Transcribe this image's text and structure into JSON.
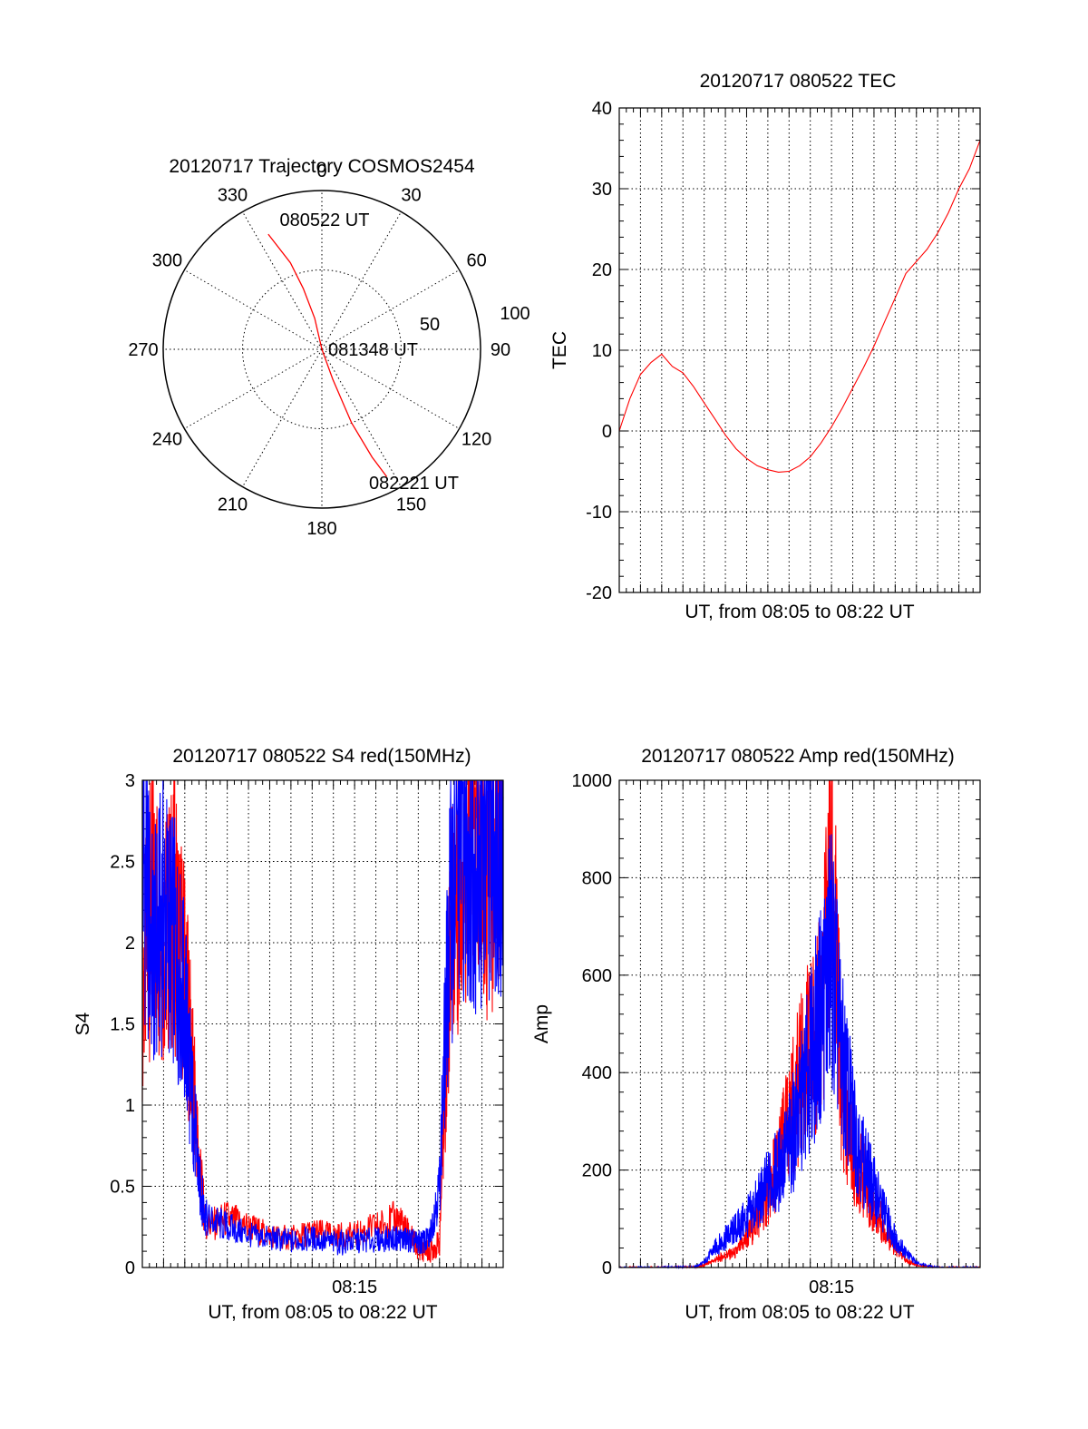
{
  "figure": {
    "panels": {
      "polar": {
        "title": "20120717 Trajectory COSMOS2454"
      },
      "tec": {
        "title": "20120717 080522 TEC"
      },
      "s4": {
        "title": "20120717 080522 S4 red(150MHz)"
      },
      "amp": {
        "title": "20120717 080522 Amp red(150MHz)"
      }
    }
  },
  "colors": {
    "red": "#ff0000",
    "blue": "#0000ff",
    "black": "#000000"
  },
  "chart_data": [
    {
      "type": "scatter",
      "subtype": "polar",
      "title": "20120717 Trajectory COSMOS2454",
      "azimuth_labels": [
        "0",
        "30",
        "60",
        "90",
        "120",
        "150",
        "180",
        "210",
        "240",
        "270",
        "300",
        "330"
      ],
      "radial_labels": [
        "50",
        "100"
      ],
      "radial_ticks": [
        50,
        100
      ],
      "series": [
        {
          "color": "#ff0000",
          "points": [
            {
              "az": 335,
              "r": 80
            },
            {
              "az": 340,
              "r": 58
            },
            {
              "az": 343,
              "r": 40
            },
            {
              "az": 347,
              "r": 20
            },
            {
              "az": 0,
              "r": 0
            },
            {
              "az": 160,
              "r": 20
            },
            {
              "az": 158,
              "r": 50
            },
            {
              "az": 155,
              "r": 75
            },
            {
              "az": 153,
              "r": 90
            }
          ]
        }
      ],
      "annotations": [
        {
          "text": "080522 UT",
          "az": 348,
          "r": 83
        },
        {
          "text": "081348 UT",
          "az": 80,
          "r": 33
        },
        {
          "text": "082221 UT",
          "az": 150,
          "r": 95
        }
      ]
    },
    {
      "type": "line",
      "title": "20120717 080522 TEC",
      "xlabel": "UT, from 08:05 to 08:22 UT",
      "ylabel": "TEC",
      "ylim": [
        -20,
        40
      ],
      "yticks": [
        "-20",
        "-10",
        "0",
        "10",
        "20",
        "30",
        "40"
      ],
      "xlim": [
        0,
        17
      ],
      "series": [
        {
          "color": "#ff0000",
          "x": [
            0,
            0.5,
            1,
            1.5,
            2,
            2.5,
            3,
            3.5,
            4,
            4.5,
            5,
            5.5,
            6,
            6.5,
            7,
            7.5,
            8,
            8.5,
            9,
            9.5,
            10,
            10.5,
            11,
            11.5,
            12,
            12.5,
            13,
            13.5,
            14,
            14.5,
            15,
            15.5,
            16,
            16.5,
            17
          ],
          "y": [
            0,
            4,
            7,
            8.5,
            9.5,
            8,
            7.2,
            5.5,
            3.5,
            1.5,
            -0.5,
            -2.2,
            -3.4,
            -4.3,
            -4.8,
            -5.1,
            -5,
            -4.3,
            -3.2,
            -1.5,
            0.5,
            2.8,
            5.3,
            7.8,
            10.5,
            13.5,
            16.5,
            19.5,
            21,
            22.5,
            24.5,
            27,
            30,
            32.5,
            36
          ]
        }
      ]
    },
    {
      "type": "line",
      "title": "20120717 080522 S4 red(150MHz)",
      "xlabel": "UT, from 08:05 to 08:22 UT",
      "ylabel": "S4",
      "ylim": [
        0,
        3
      ],
      "yticks": [
        "0",
        "0.5",
        "1",
        "1.5",
        "2",
        "2.5",
        "3"
      ],
      "xlim": [
        0,
        17
      ],
      "xticks": [
        {
          "value": 10,
          "label": "08:15"
        }
      ],
      "series": [
        {
          "color": "#ff0000",
          "x": [
            0,
            0.5,
            1,
            1.5,
            2,
            2.3,
            2.7,
            3,
            4,
            5,
            6,
            7,
            8,
            9,
            10,
            11,
            12,
            12.5,
            13,
            13.5,
            14,
            14.5,
            15,
            15.5,
            16,
            16.5,
            17
          ],
          "y": [
            1.7,
            2.3,
            2.0,
            2.2,
            1.8,
            1.3,
            0.6,
            0.25,
            0.3,
            0.25,
            0.2,
            0.18,
            0.22,
            0.2,
            0.2,
            0.25,
            0.3,
            0.22,
            0.12,
            0.1,
            0.15,
            2.0,
            2.5,
            2.8,
            2.4,
            2.6,
            2.9
          ]
        },
        {
          "color": "#0000ff",
          "x": [
            0,
            0.5,
            1,
            1.5,
            2,
            2.3,
            2.7,
            3,
            4,
            5,
            6,
            7,
            8,
            9,
            10,
            11,
            12,
            12.5,
            13,
            13.5,
            14,
            14.5,
            15,
            15.5,
            16,
            16.5,
            17
          ],
          "y": [
            2.6,
            1.9,
            2.2,
            2.0,
            1.6,
            1.1,
            0.5,
            0.3,
            0.25,
            0.2,
            0.18,
            0.16,
            0.18,
            0.15,
            0.16,
            0.17,
            0.18,
            0.17,
            0.15,
            0.17,
            0.5,
            2.2,
            2.7,
            2.6,
            2.5,
            2.8,
            2.7
          ]
        }
      ]
    },
    {
      "type": "line",
      "title": "20120717 080522 Amp red(150MHz)",
      "xlabel": "UT, from 08:05 to 08:22 UT",
      "ylabel": "Amp",
      "ylim": [
        0,
        1000
      ],
      "yticks": [
        "0",
        "200",
        "400",
        "600",
        "800",
        "1000"
      ],
      "xlim": [
        0,
        17
      ],
      "xticks": [
        {
          "value": 10,
          "label": "08:15"
        }
      ],
      "series": [
        {
          "color": "#ff0000",
          "x": [
            0,
            2,
            2.5,
            3,
            3.5,
            4,
            4.5,
            5,
            5.5,
            6,
            6.5,
            7,
            7.5,
            8,
            8.5,
            9,
            9.5,
            10,
            10.5,
            11,
            11.5,
            12,
            12.5,
            13,
            13.5,
            14,
            15,
            17
          ],
          "y": [
            0,
            0,
            0,
            0,
            0,
            5,
            15,
            25,
            30,
            60,
            100,
            150,
            220,
            300,
            380,
            450,
            500,
            820,
            350,
            230,
            180,
            120,
            80,
            40,
            15,
            5,
            0,
            0
          ]
        },
        {
          "color": "#0000ff",
          "x": [
            0,
            2,
            2.5,
            3,
            3.5,
            4,
            4.5,
            5,
            5.5,
            6,
            6.5,
            7,
            7.5,
            8,
            8.5,
            9,
            9.5,
            10,
            10.5,
            11,
            11.5,
            12,
            12.5,
            13,
            13.5,
            14,
            15,
            17
          ],
          "y": [
            0,
            0,
            0,
            0,
            0,
            10,
            40,
            60,
            80,
            100,
            130,
            170,
            200,
            250,
            320,
            420,
            520,
            650,
            420,
            300,
            220,
            160,
            110,
            60,
            30,
            10,
            0,
            0
          ]
        }
      ]
    }
  ]
}
